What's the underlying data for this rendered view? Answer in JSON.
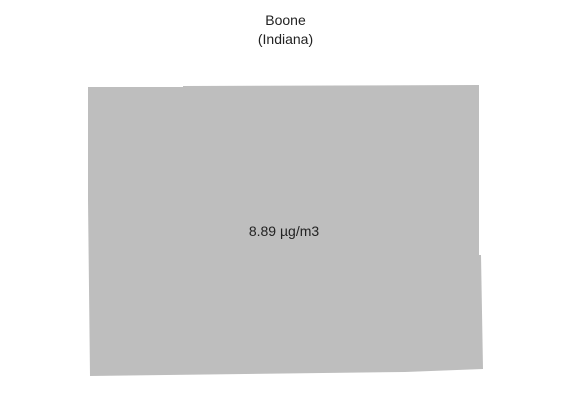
{
  "map": {
    "title": "Boone",
    "subtitle": "(Indiana)",
    "region_name": "Boone",
    "value_label": "8.89 µg/m3",
    "value": 8.89,
    "unit": "µg/m3",
    "fill_color": "#bebebe",
    "background_color": "#ffffff"
  }
}
